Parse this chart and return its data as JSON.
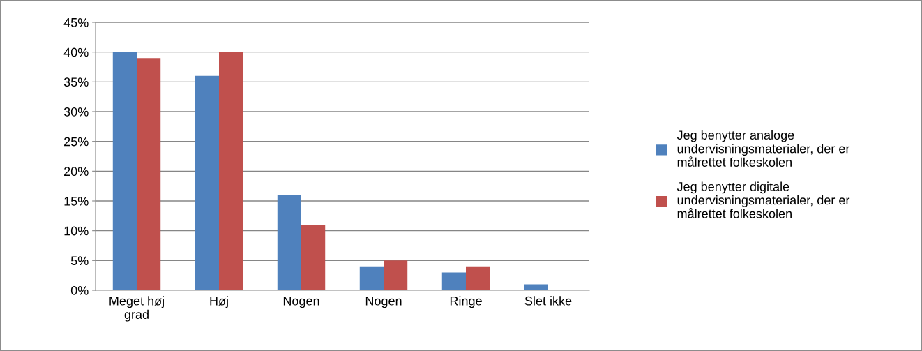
{
  "chart_data": {
    "type": "bar",
    "categories": [
      "Meget høj\ngrad",
      "Høj",
      "Nogen",
      "Nogen",
      "Ringe",
      "Slet ikke"
    ],
    "series": [
      {
        "name": "Jeg benytter analoge\nundervisningsmaterialer, der er\nmålrettet folkeskolen",
        "color": "#4f81bd",
        "values": [
          40,
          36,
          16,
          4,
          3,
          1
        ]
      },
      {
        "name": "Jeg benytter digitale\nundervisningsmaterialer, der er\nmålrettet folkeskolen",
        "color": "#c0504d",
        "values": [
          39,
          40,
          11,
          5,
          4,
          0
        ]
      }
    ],
    "ylim": [
      0,
      45
    ],
    "yticks": [
      {
        "value": 0,
        "label": "0%"
      },
      {
        "value": 5,
        "label": "5%"
      },
      {
        "value": 10,
        "label": "10%"
      },
      {
        "value": 15,
        "label": "15%"
      },
      {
        "value": 20,
        "label": "20%"
      },
      {
        "value": 25,
        "label": "25%"
      },
      {
        "value": 30,
        "label": "30%"
      },
      {
        "value": 35,
        "label": "35%"
      },
      {
        "value": 40,
        "label": "40%"
      },
      {
        "value": 45,
        "label": "45%"
      }
    ],
    "grid": "y",
    "legend": "right"
  }
}
